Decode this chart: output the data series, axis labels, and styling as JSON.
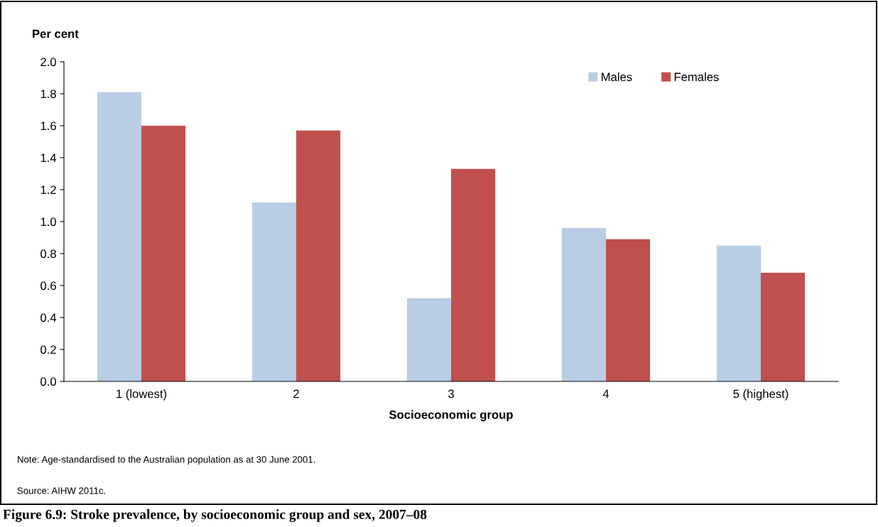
{
  "chart_data": {
    "type": "bar",
    "title": "Figure 6.9: Stroke prevalence, by socioeconomic group and sex, 2007–08",
    "xlabel": "Socioeconomic group",
    "ylabel": "Per cent",
    "categories": [
      "1 (lowest)",
      "2",
      "3",
      "4",
      "5 (highest)"
    ],
    "series": [
      {
        "name": "Males",
        "color": "#b9cde5",
        "values": [
          1.81,
          1.12,
          0.52,
          0.96,
          0.85
        ]
      },
      {
        "name": "Females",
        "color": "#c0504d",
        "values": [
          1.6,
          1.57,
          1.33,
          0.89,
          0.68
        ]
      }
    ],
    "ylim": [
      0,
      2.0
    ],
    "yticks": [
      {
        "value": 0,
        "label": "0.0"
      },
      {
        "value": 0.2,
        "label": "0.2"
      },
      {
        "value": 0.4,
        "label": "0.4"
      },
      {
        "value": 0.6,
        "label": "0.6"
      },
      {
        "value": 0.8,
        "label": "0.8"
      },
      {
        "value": 1.0,
        "label": "1.0"
      },
      {
        "value": 1.2,
        "label": "1.2"
      },
      {
        "value": 1.4,
        "label": "1.4"
      },
      {
        "value": 1.6,
        "label": "1.6"
      },
      {
        "value": 1.8,
        "label": "1.8"
      },
      {
        "value": 2.0,
        "label": "2.0"
      }
    ],
    "legend": "top right",
    "annotations": [
      "Note: Age-standardised to the Australian population as at 30 June 2001.",
      "Source: AIHW 2011c."
    ]
  }
}
